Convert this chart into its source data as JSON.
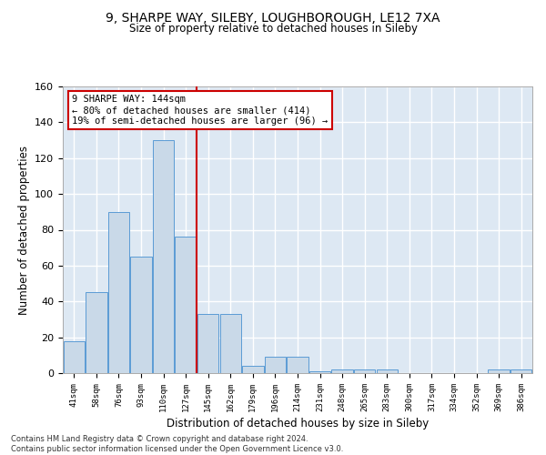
{
  "title_line1": "9, SHARPE WAY, SILEBY, LOUGHBOROUGH, LE12 7XA",
  "title_line2": "Size of property relative to detached houses in Sileby",
  "xlabel": "Distribution of detached houses by size in Sileby",
  "ylabel": "Number of detached properties",
  "footnote": "Contains HM Land Registry data © Crown copyright and database right 2024.\nContains public sector information licensed under the Open Government Licence v3.0.",
  "categories": [
    "41sqm",
    "58sqm",
    "76sqm",
    "93sqm",
    "110sqm",
    "127sqm",
    "145sqm",
    "162sqm",
    "179sqm",
    "196sqm",
    "214sqm",
    "231sqm",
    "248sqm",
    "265sqm",
    "283sqm",
    "300sqm",
    "317sqm",
    "334sqm",
    "352sqm",
    "369sqm",
    "386sqm"
  ],
  "values": [
    18,
    45,
    90,
    65,
    130,
    76,
    33,
    33,
    4,
    9,
    9,
    1,
    2,
    2,
    2,
    0,
    0,
    0,
    0,
    2,
    2
  ],
  "bar_color": "#c9d9e8",
  "bar_edge_color": "#5b9bd5",
  "background_color": "#dde8f3",
  "grid_color": "#ffffff",
  "annotation_line1": "9 SHARPE WAY: 144sqm",
  "annotation_line2": "← 80% of detached houses are smaller (414)",
  "annotation_line3": "19% of semi-detached houses are larger (96) →",
  "annotation_box_color": "#ffffff",
  "annotation_box_edge": "#cc0000",
  "vline_color": "#cc0000",
  "vline_index": 5,
  "ylim": [
    0,
    160
  ],
  "yticks": [
    0,
    20,
    40,
    60,
    80,
    100,
    120,
    140,
    160
  ]
}
